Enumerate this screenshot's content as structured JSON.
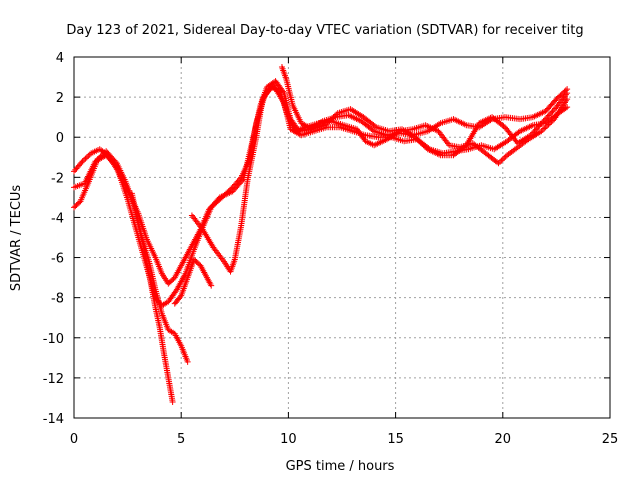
{
  "chart_data": {
    "type": "scatter",
    "title": "Day 123 of 2021, Sidereal Day-to-day VTEC variation (SDTVAR) for receiver titg",
    "xlabel": "GPS time / hours",
    "ylabel": "SDTVAR / TECUs",
    "xlim": [
      0,
      25
    ],
    "ylim": [
      -14,
      4
    ],
    "xticks": [
      0,
      5,
      10,
      15,
      20,
      25
    ],
    "yticks": [
      -14,
      -12,
      -10,
      -8,
      -6,
      -4,
      -2,
      0,
      2,
      4
    ],
    "grid": true,
    "marker": "+",
    "color": "#ff0000",
    "series": [
      {
        "values": [
          [
            0.0,
            -1.7
          ],
          [
            0.4,
            -1.2
          ],
          [
            0.8,
            -0.8
          ],
          [
            1.2,
            -0.6
          ],
          [
            1.6,
            -0.9
          ],
          [
            2.0,
            -1.6
          ],
          [
            2.5,
            -2.6
          ],
          [
            3.0,
            -3.8
          ],
          [
            3.4,
            -5.1
          ],
          [
            3.8,
            -6.0
          ],
          [
            4.1,
            -6.8
          ],
          [
            4.4,
            -7.3
          ],
          [
            4.7,
            -7.0
          ],
          [
            5.0,
            -6.4
          ],
          [
            5.4,
            -5.6
          ],
          [
            5.9,
            -4.6
          ],
          [
            6.3,
            -3.6
          ],
          [
            6.8,
            -3.0
          ],
          [
            7.4,
            -2.7
          ],
          [
            7.9,
            -2.1
          ],
          [
            8.3,
            -0.3
          ],
          [
            8.7,
            1.6
          ],
          [
            9.0,
            2.5
          ],
          [
            9.4,
            2.8
          ],
          [
            9.8,
            2.2
          ],
          [
            10.1,
            0.9
          ],
          [
            10.5,
            0.3
          ],
          [
            11.0,
            0.4
          ],
          [
            11.6,
            0.8
          ],
          [
            12.2,
            1.0
          ],
          [
            12.8,
            1.1
          ],
          [
            13.4,
            0.8
          ],
          [
            14.0,
            0.3
          ],
          [
            14.6,
            0.1
          ],
          [
            15.2,
            0.2
          ],
          [
            15.8,
            0.1
          ],
          [
            16.5,
            0.3
          ],
          [
            17.1,
            0.7
          ],
          [
            17.7,
            0.9
          ],
          [
            18.3,
            0.6
          ],
          [
            18.9,
            0.5
          ],
          [
            19.5,
            0.9
          ],
          [
            20.1,
            1.0
          ],
          [
            20.8,
            0.9
          ],
          [
            21.4,
            1.0
          ],
          [
            22.0,
            1.3
          ],
          [
            22.5,
            1.9
          ],
          [
            23.0,
            2.4
          ]
        ]
      },
      {
        "values": [
          [
            0.0,
            -2.5
          ],
          [
            0.5,
            -2.3
          ],
          [
            1.0,
            -1.2
          ],
          [
            1.5,
            -0.9
          ],
          [
            2.0,
            -1.5
          ],
          [
            2.5,
            -3.1
          ],
          [
            3.0,
            -5.0
          ],
          [
            3.4,
            -6.5
          ],
          [
            3.8,
            -8.0
          ],
          [
            4.1,
            -8.4
          ],
          [
            4.4,
            -8.2
          ],
          [
            4.8,
            -7.6
          ],
          [
            5.2,
            -6.8
          ],
          [
            5.6,
            -5.6
          ],
          [
            6.0,
            -4.5
          ],
          [
            6.4,
            -3.5
          ],
          [
            6.9,
            -3.0
          ],
          [
            7.4,
            -2.5
          ],
          [
            7.8,
            -2.0
          ],
          [
            8.2,
            -1.1
          ],
          [
            8.5,
            0.7
          ],
          [
            8.9,
            2.1
          ],
          [
            9.3,
            2.6
          ],
          [
            9.8,
            1.7
          ],
          [
            10.1,
            0.4
          ],
          [
            10.6,
            0.1
          ],
          [
            11.2,
            0.3
          ],
          [
            11.8,
            0.5
          ],
          [
            12.4,
            0.5
          ],
          [
            13.0,
            0.3
          ],
          [
            13.6,
            0.1
          ],
          [
            14.2,
            0.0
          ],
          [
            14.8,
            0.0
          ],
          [
            15.4,
            -0.2
          ],
          [
            16.0,
            -0.1
          ],
          [
            16.6,
            -0.6
          ],
          [
            17.2,
            -0.8
          ],
          [
            17.8,
            -0.7
          ],
          [
            18.4,
            -0.6
          ],
          [
            19.0,
            -0.4
          ],
          [
            19.6,
            -0.6
          ],
          [
            20.2,
            -0.2
          ],
          [
            20.8,
            0.3
          ],
          [
            21.4,
            0.6
          ],
          [
            22.0,
            0.7
          ],
          [
            22.6,
            1.2
          ],
          [
            23.0,
            1.5
          ]
        ]
      },
      {
        "values": [
          [
            0.0,
            -3.5
          ],
          [
            0.3,
            -3.2
          ],
          [
            0.7,
            -2.2
          ],
          [
            1.1,
            -1.1
          ],
          [
            1.5,
            -0.7
          ],
          [
            2.0,
            -1.3
          ],
          [
            2.4,
            -2.2
          ],
          [
            2.8,
            -3.4
          ],
          [
            3.2,
            -5.2
          ],
          [
            3.5,
            -6.8
          ],
          [
            3.8,
            -8.5
          ],
          [
            4.0,
            -9.5
          ],
          [
            4.2,
            -10.8
          ],
          [
            4.4,
            -12.0
          ],
          [
            4.6,
            -13.2
          ]
        ]
      },
      {
        "values": [
          [
            2.7,
            -2.8
          ],
          [
            3.1,
            -4.8
          ],
          [
            3.5,
            -6.2
          ],
          [
            3.8,
            -7.6
          ],
          [
            4.1,
            -8.8
          ],
          [
            4.4,
            -9.6
          ],
          [
            4.7,
            -9.8
          ],
          [
            5.0,
            -10.4
          ],
          [
            5.3,
            -11.2
          ]
        ]
      },
      {
        "values": [
          [
            4.7,
            -8.3
          ],
          [
            5.0,
            -7.9
          ],
          [
            5.3,
            -7.0
          ],
          [
            5.6,
            -6.1
          ],
          [
            5.9,
            -6.4
          ],
          [
            6.2,
            -7.0
          ],
          [
            6.4,
            -7.4
          ]
        ]
      },
      {
        "values": [
          [
            5.5,
            -3.9
          ],
          [
            6.0,
            -4.6
          ],
          [
            6.5,
            -5.5
          ],
          [
            7.0,
            -6.2
          ],
          [
            7.3,
            -6.7
          ],
          [
            7.5,
            -6.1
          ],
          [
            7.8,
            -4.4
          ],
          [
            8.1,
            -2.1
          ],
          [
            8.5,
            0.0
          ],
          [
            8.8,
            1.9
          ],
          [
            9.2,
            2.5
          ],
          [
            9.6,
            2.3
          ],
          [
            9.9,
            1.3
          ],
          [
            10.3,
            0.3
          ],
          [
            10.8,
            0.5
          ],
          [
            11.4,
            0.7
          ],
          [
            12.0,
            0.8
          ],
          [
            12.6,
            0.6
          ],
          [
            13.2,
            0.4
          ],
          [
            13.6,
            -0.2
          ],
          [
            14.0,
            -0.4
          ],
          [
            14.6,
            -0.1
          ],
          [
            15.2,
            0.3
          ],
          [
            15.8,
            0.4
          ],
          [
            16.4,
            0.6
          ],
          [
            17.0,
            0.3
          ],
          [
            17.5,
            -0.4
          ],
          [
            18.0,
            -0.5
          ],
          [
            18.6,
            -0.3
          ],
          [
            19.2,
            -0.8
          ],
          [
            19.8,
            -1.3
          ],
          [
            20.2,
            -0.9
          ],
          [
            20.7,
            -0.5
          ],
          [
            21.2,
            -0.1
          ],
          [
            21.8,
            0.3
          ],
          [
            22.4,
            0.9
          ],
          [
            23.0,
            1.9
          ]
        ]
      },
      {
        "values": [
          [
            9.7,
            3.5
          ],
          [
            9.9,
            2.9
          ],
          [
            10.2,
            1.6
          ],
          [
            10.6,
            0.7
          ],
          [
            11.1,
            0.4
          ],
          [
            11.7,
            0.6
          ],
          [
            12.3,
            1.2
          ],
          [
            12.9,
            1.4
          ],
          [
            13.5,
            1.0
          ],
          [
            14.1,
            0.5
          ],
          [
            14.7,
            0.3
          ],
          [
            15.3,
            0.4
          ],
          [
            15.9,
            0.0
          ],
          [
            16.5,
            -0.6
          ],
          [
            17.1,
            -0.9
          ],
          [
            17.7,
            -0.9
          ],
          [
            18.3,
            -0.4
          ],
          [
            18.9,
            0.7
          ],
          [
            19.5,
            1.0
          ],
          [
            20.1,
            0.5
          ],
          [
            20.7,
            -0.3
          ],
          [
            21.3,
            0.1
          ],
          [
            21.9,
            0.8
          ],
          [
            22.5,
            1.5
          ],
          [
            23.0,
            2.2
          ]
        ]
      }
    ]
  }
}
